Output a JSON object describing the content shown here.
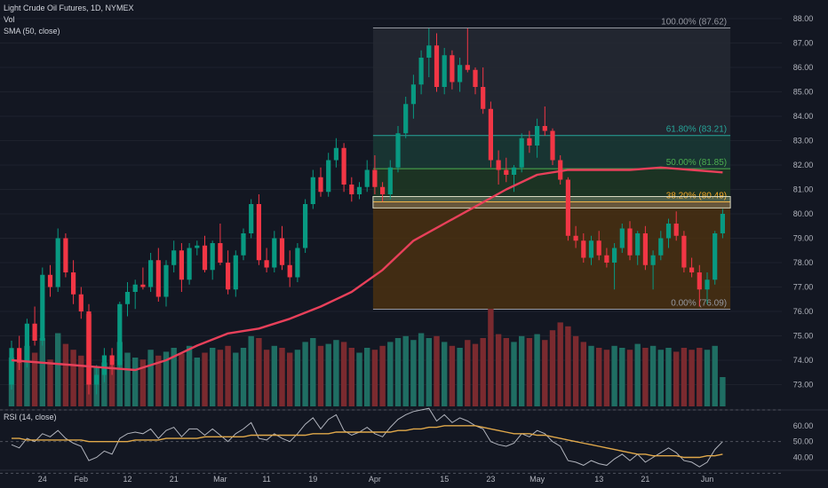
{
  "legend": {
    "title": "Light Crude Oil Futures, 1D, NYMEX",
    "vol": "Vol",
    "sma": "SMA (50, close)"
  },
  "rsi_label": "RSI (14, close)",
  "colors": {
    "background": "#131722",
    "up": "#089981",
    "down": "#f23645",
    "up_volume": "#1f6e63",
    "down_volume": "#7a2a2f",
    "sma": "#e8405a",
    "rsi": "#b2b5be",
    "rsi_ma": "#e0a84a",
    "grid": "#1e222d",
    "axis_text": "#b2b5be"
  },
  "chart_data": {
    "type": "candlestick",
    "title": "Light Crude Oil Futures, 1D, NYMEX",
    "ylim": [
      72.4,
      88.4
    ],
    "y_ticks": [
      "73.00",
      "74.00",
      "75.00",
      "76.00",
      "77.00",
      "78.00",
      "79.00",
      "80.00",
      "81.00",
      "82.00",
      "83.00",
      "84.00",
      "85.00",
      "86.00",
      "87.00",
      "88.00"
    ],
    "x_ticks": [
      {
        "label": "24",
        "index": 4
      },
      {
        "label": "Feb",
        "index": 9
      },
      {
        "label": "12",
        "index": 15
      },
      {
        "label": "21",
        "index": 21
      },
      {
        "label": "Mar",
        "index": 27
      },
      {
        "label": "11",
        "index": 33
      },
      {
        "label": "19",
        "index": 39
      },
      {
        "label": "Apr",
        "index": 47
      },
      {
        "label": "15",
        "index": 56
      },
      {
        "label": "23",
        "index": 62
      },
      {
        "label": "May",
        "index": 68
      },
      {
        "label": "13",
        "index": 76
      },
      {
        "label": "21",
        "index": 82
      },
      {
        "label": "Jun",
        "index": 90
      }
    ],
    "candles": [
      {
        "o": 73.0,
        "h": 74.8,
        "l": 72.8,
        "c": 74.5
      },
      {
        "o": 74.5,
        "h": 75.0,
        "l": 73.6,
        "c": 73.9
      },
      {
        "o": 73.9,
        "h": 75.7,
        "l": 73.7,
        "c": 75.5
      },
      {
        "o": 75.5,
        "h": 76.2,
        "l": 74.6,
        "c": 74.8
      },
      {
        "o": 74.8,
        "h": 77.8,
        "l": 74.6,
        "c": 77.5
      },
      {
        "o": 77.5,
        "h": 77.9,
        "l": 76.6,
        "c": 77.0
      },
      {
        "o": 77.0,
        "h": 79.4,
        "l": 76.8,
        "c": 79.0
      },
      {
        "o": 79.0,
        "h": 79.2,
        "l": 77.4,
        "c": 77.6
      },
      {
        "o": 77.6,
        "h": 78.1,
        "l": 76.3,
        "c": 76.7
      },
      {
        "o": 76.7,
        "h": 77.0,
        "l": 75.7,
        "c": 76.0
      },
      {
        "o": 76.0,
        "h": 76.3,
        "l": 72.6,
        "c": 73.0
      },
      {
        "o": 73.0,
        "h": 73.8,
        "l": 72.6,
        "c": 73.4
      },
      {
        "o": 73.4,
        "h": 74.5,
        "l": 73.1,
        "c": 74.2
      },
      {
        "o": 74.2,
        "h": 74.5,
        "l": 73.4,
        "c": 73.8
      },
      {
        "o": 73.8,
        "h": 76.4,
        "l": 73.7,
        "c": 76.3
      },
      {
        "o": 76.3,
        "h": 77.2,
        "l": 75.8,
        "c": 76.8
      },
      {
        "o": 76.8,
        "h": 77.3,
        "l": 76.1,
        "c": 77.1
      },
      {
        "o": 77.1,
        "h": 77.8,
        "l": 76.9,
        "c": 77.0
      },
      {
        "o": 77.0,
        "h": 78.4,
        "l": 76.8,
        "c": 78.1
      },
      {
        "o": 78.1,
        "h": 78.6,
        "l": 76.4,
        "c": 76.6
      },
      {
        "o": 76.6,
        "h": 78.1,
        "l": 76.2,
        "c": 77.9
      },
      {
        "o": 77.9,
        "h": 78.9,
        "l": 77.6,
        "c": 78.5
      },
      {
        "o": 78.5,
        "h": 78.8,
        "l": 76.8,
        "c": 77.3
      },
      {
        "o": 77.3,
        "h": 78.8,
        "l": 77.1,
        "c": 78.6
      },
      {
        "o": 78.6,
        "h": 78.9,
        "l": 78.3,
        "c": 78.7
      },
      {
        "o": 78.7,
        "h": 79.1,
        "l": 77.6,
        "c": 77.7
      },
      {
        "o": 77.7,
        "h": 78.9,
        "l": 77.3,
        "c": 78.8
      },
      {
        "o": 78.8,
        "h": 79.6,
        "l": 77.9,
        "c": 78.0
      },
      {
        "o": 78.0,
        "h": 78.5,
        "l": 76.7,
        "c": 76.9
      },
      {
        "o": 76.9,
        "h": 78.5,
        "l": 76.6,
        "c": 78.3
      },
      {
        "o": 78.3,
        "h": 79.4,
        "l": 78.1,
        "c": 79.2
      },
      {
        "o": 79.2,
        "h": 80.6,
        "l": 79.0,
        "c": 80.4
      },
      {
        "o": 80.4,
        "h": 80.8,
        "l": 77.9,
        "c": 78.1
      },
      {
        "o": 78.1,
        "h": 78.6,
        "l": 77.6,
        "c": 77.8
      },
      {
        "o": 77.8,
        "h": 79.3,
        "l": 77.6,
        "c": 79.0
      },
      {
        "o": 79.0,
        "h": 79.5,
        "l": 77.7,
        "c": 77.9
      },
      {
        "o": 77.9,
        "h": 78.5,
        "l": 77.0,
        "c": 77.4
      },
      {
        "o": 77.4,
        "h": 78.8,
        "l": 77.2,
        "c": 78.6
      },
      {
        "o": 78.6,
        "h": 80.6,
        "l": 78.4,
        "c": 80.4
      },
      {
        "o": 80.4,
        "h": 81.8,
        "l": 80.2,
        "c": 81.5
      },
      {
        "o": 81.5,
        "h": 81.9,
        "l": 80.7,
        "c": 80.9
      },
      {
        "o": 80.9,
        "h": 82.5,
        "l": 80.7,
        "c": 82.2
      },
      {
        "o": 82.2,
        "h": 83.1,
        "l": 81.9,
        "c": 82.7
      },
      {
        "o": 82.7,
        "h": 82.9,
        "l": 80.9,
        "c": 81.2
      },
      {
        "o": 81.2,
        "h": 81.5,
        "l": 80.5,
        "c": 80.8
      },
      {
        "o": 80.8,
        "h": 81.3,
        "l": 80.6,
        "c": 81.1
      },
      {
        "o": 81.1,
        "h": 82.2,
        "l": 80.9,
        "c": 81.8
      },
      {
        "o": 81.8,
        "h": 82.4,
        "l": 80.8,
        "c": 81.1
      },
      {
        "o": 81.1,
        "h": 81.3,
        "l": 80.5,
        "c": 80.8
      },
      {
        "o": 80.8,
        "h": 82.2,
        "l": 80.6,
        "c": 81.9
      },
      {
        "o": 81.9,
        "h": 83.6,
        "l": 81.7,
        "c": 83.3
      },
      {
        "o": 83.3,
        "h": 84.8,
        "l": 83.1,
        "c": 84.5
      },
      {
        "o": 84.5,
        "h": 85.7,
        "l": 83.9,
        "c": 85.3
      },
      {
        "o": 85.3,
        "h": 86.7,
        "l": 84.9,
        "c": 86.4
      },
      {
        "o": 86.4,
        "h": 87.6,
        "l": 85.6,
        "c": 86.9
      },
      {
        "o": 86.9,
        "h": 87.4,
        "l": 85.0,
        "c": 85.2
      },
      {
        "o": 85.2,
        "h": 86.8,
        "l": 84.9,
        "c": 86.5
      },
      {
        "o": 86.5,
        "h": 86.7,
        "l": 85.1,
        "c": 85.4
      },
      {
        "o": 85.4,
        "h": 86.4,
        "l": 85.0,
        "c": 86.1
      },
      {
        "o": 86.1,
        "h": 87.6,
        "l": 85.8,
        "c": 85.9
      },
      {
        "o": 85.9,
        "h": 86.0,
        "l": 84.9,
        "c": 85.2
      },
      {
        "o": 85.2,
        "h": 86.0,
        "l": 84.1,
        "c": 84.3
      },
      {
        "o": 84.3,
        "h": 84.6,
        "l": 81.9,
        "c": 82.2
      },
      {
        "o": 82.2,
        "h": 82.6,
        "l": 81.2,
        "c": 81.8
      },
      {
        "o": 81.8,
        "h": 82.3,
        "l": 81.3,
        "c": 81.6
      },
      {
        "o": 81.6,
        "h": 82.0,
        "l": 80.9,
        "c": 81.9
      },
      {
        "o": 81.9,
        "h": 83.3,
        "l": 81.7,
        "c": 83.1
      },
      {
        "o": 83.1,
        "h": 83.4,
        "l": 82.5,
        "c": 82.8
      },
      {
        "o": 82.8,
        "h": 83.9,
        "l": 82.3,
        "c": 83.6
      },
      {
        "o": 83.6,
        "h": 84.4,
        "l": 83.2,
        "c": 83.4
      },
      {
        "o": 83.4,
        "h": 83.5,
        "l": 82.0,
        "c": 82.2
      },
      {
        "o": 82.2,
        "h": 82.4,
        "l": 81.2,
        "c": 81.4
      },
      {
        "o": 81.4,
        "h": 81.5,
        "l": 78.9,
        "c": 79.1
      },
      {
        "o": 79.1,
        "h": 79.5,
        "l": 78.6,
        "c": 78.9
      },
      {
        "o": 78.9,
        "h": 79.2,
        "l": 78.0,
        "c": 78.2
      },
      {
        "o": 78.2,
        "h": 79.1,
        "l": 77.9,
        "c": 78.9
      },
      {
        "o": 78.9,
        "h": 79.3,
        "l": 78.1,
        "c": 78.3
      },
      {
        "o": 78.3,
        "h": 78.6,
        "l": 77.8,
        "c": 78.0
      },
      {
        "o": 78.0,
        "h": 78.8,
        "l": 76.9,
        "c": 78.6
      },
      {
        "o": 78.6,
        "h": 79.6,
        "l": 78.4,
        "c": 79.4
      },
      {
        "o": 79.4,
        "h": 79.7,
        "l": 78.1,
        "c": 78.3
      },
      {
        "o": 78.3,
        "h": 79.3,
        "l": 77.9,
        "c": 79.2
      },
      {
        "o": 79.2,
        "h": 79.5,
        "l": 77.7,
        "c": 77.9
      },
      {
        "o": 77.9,
        "h": 78.5,
        "l": 76.9,
        "c": 78.3
      },
      {
        "o": 78.3,
        "h": 79.3,
        "l": 78.1,
        "c": 79.0
      },
      {
        "o": 79.0,
        "h": 79.8,
        "l": 78.6,
        "c": 79.6
      },
      {
        "o": 79.6,
        "h": 80.1,
        "l": 78.9,
        "c": 79.1
      },
      {
        "o": 79.1,
        "h": 79.3,
        "l": 77.6,
        "c": 77.8
      },
      {
        "o": 77.8,
        "h": 78.2,
        "l": 77.4,
        "c": 77.6
      },
      {
        "o": 77.6,
        "h": 77.9,
        "l": 76.2,
        "c": 76.9
      },
      {
        "o": 76.9,
        "h": 77.6,
        "l": 76.3,
        "c": 77.3
      },
      {
        "o": 77.3,
        "h": 79.3,
        "l": 77.1,
        "c": 79.2
      },
      {
        "o": 79.2,
        "h": 80.2,
        "l": 79.0,
        "c": 80.0
      }
    ],
    "volume_levels": [
      0.5,
      0.45,
      0.62,
      0.55,
      0.7,
      0.48,
      0.75,
      0.64,
      0.58,
      0.52,
      0.95,
      0.4,
      0.45,
      0.42,
      0.66,
      0.55,
      0.5,
      0.48,
      0.58,
      0.52,
      0.56,
      0.6,
      0.54,
      0.62,
      0.5,
      0.55,
      0.6,
      0.58,
      0.62,
      0.55,
      0.6,
      0.72,
      0.7,
      0.58,
      0.62,
      0.6,
      0.55,
      0.58,
      0.66,
      0.7,
      0.62,
      0.64,
      0.68,
      0.66,
      0.6,
      0.55,
      0.6,
      0.58,
      0.62,
      0.66,
      0.7,
      0.72,
      0.68,
      0.75,
      0.7,
      0.72,
      0.66,
      0.62,
      0.6,
      0.68,
      0.64,
      0.7,
      1.0,
      0.74,
      0.7,
      0.66,
      0.72,
      0.7,
      0.74,
      0.68,
      0.78,
      0.86,
      0.82,
      0.72,
      0.66,
      0.62,
      0.6,
      0.58,
      0.62,
      0.6,
      0.58,
      0.64,
      0.6,
      0.62,
      0.58,
      0.6,
      0.56,
      0.6,
      0.58,
      0.6,
      0.58,
      0.62,
      0.3
    ],
    "sma": [
      {
        "i": 0,
        "v": 74.0
      },
      {
        "i": 4,
        "v": 73.9
      },
      {
        "i": 8,
        "v": 73.8
      },
      {
        "i": 12,
        "v": 73.7
      },
      {
        "i": 16,
        "v": 73.6
      },
      {
        "i": 20,
        "v": 74.0
      },
      {
        "i": 24,
        "v": 74.6
      },
      {
        "i": 28,
        "v": 75.1
      },
      {
        "i": 32,
        "v": 75.3
      },
      {
        "i": 36,
        "v": 75.7
      },
      {
        "i": 40,
        "v": 76.2
      },
      {
        "i": 44,
        "v": 76.8
      },
      {
        "i": 48,
        "v": 77.7
      },
      {
        "i": 52,
        "v": 78.9
      },
      {
        "i": 56,
        "v": 79.6
      },
      {
        "i": 60,
        "v": 80.3
      },
      {
        "i": 64,
        "v": 81.0
      },
      {
        "i": 68,
        "v": 81.6
      },
      {
        "i": 72,
        "v": 81.8
      },
      {
        "i": 76,
        "v": 81.8
      },
      {
        "i": 80,
        "v": 81.8
      },
      {
        "i": 84,
        "v": 81.9
      },
      {
        "i": 88,
        "v": 81.8
      },
      {
        "i": 92,
        "v": 81.7
      }
    ],
    "fibonacci": {
      "start_index": 47,
      "end_index": 93,
      "levels": [
        {
          "label": "100.00% (87.62)",
          "value": 87.62,
          "ratio": 1.0,
          "color": "#9598a1",
          "fill": "#262932"
        },
        {
          "label": "61.80% (83.21)",
          "value": 83.21,
          "ratio": 0.618,
          "color": "#26a69a",
          "fill": "#1a3a35"
        },
        {
          "label": "50.00% (81.85)",
          "value": 81.85,
          "ratio": 0.5,
          "color": "#4caf50",
          "fill": "#1e3823"
        },
        {
          "label": "38.20% (80.49)",
          "value": 80.49,
          "ratio": 0.382,
          "color": "#f5a623",
          "fill": "#4a3010"
        },
        {
          "label": "0.00% (76.09)",
          "value": 76.09,
          "ratio": 0.0,
          "color": "#9598a1",
          "fill": "#4a3010"
        }
      ],
      "highlight_zone": [
        80.35,
        80.6
      ]
    },
    "rsi": {
      "ticks": [
        "40.00",
        "50.00",
        "60.00"
      ],
      "ylim": [
        33,
        70
      ],
      "values": [
        48,
        46,
        52,
        50,
        55,
        53,
        57,
        52,
        49,
        47,
        38,
        40,
        44,
        42,
        52,
        55,
        56,
        55,
        58,
        52,
        57,
        59,
        53,
        58,
        58,
        54,
        58,
        54,
        50,
        55,
        58,
        62,
        52,
        51,
        55,
        52,
        50,
        55,
        61,
        65,
        58,
        64,
        67,
        57,
        54,
        56,
        59,
        55,
        53,
        59,
        64,
        67,
        69,
        70,
        71,
        63,
        67,
        62,
        65,
        63,
        60,
        58,
        50,
        48,
        47,
        49,
        55,
        53,
        57,
        55,
        50,
        47,
        38,
        37,
        35,
        38,
        36,
        35,
        39,
        42,
        38,
        42,
        37,
        40,
        43,
        46,
        43,
        38,
        37,
        34,
        37,
        45,
        50
      ],
      "ma": [
        52,
        52,
        51,
        51,
        51,
        51,
        51,
        51,
        51,
        51,
        50,
        50,
        50,
        50,
        50,
        50,
        51,
        51,
        51,
        51,
        52,
        52,
        52,
        52,
        52,
        53,
        53,
        53,
        53,
        53,
        53,
        54,
        54,
        54,
        54,
        54,
        54,
        54,
        54,
        55,
        55,
        55,
        56,
        56,
        56,
        56,
        56,
        56,
        56,
        56,
        57,
        57,
        58,
        58,
        59,
        59,
        60,
        60,
        60,
        60,
        60,
        59,
        58,
        57,
        56,
        55,
        55,
        55,
        54,
        54,
        53,
        52,
        51,
        50,
        49,
        48,
        47,
        46,
        45,
        44,
        43,
        42,
        42,
        41,
        41,
        41,
        41,
        40,
        40,
        40,
        41,
        41,
        42
      ]
    }
  }
}
